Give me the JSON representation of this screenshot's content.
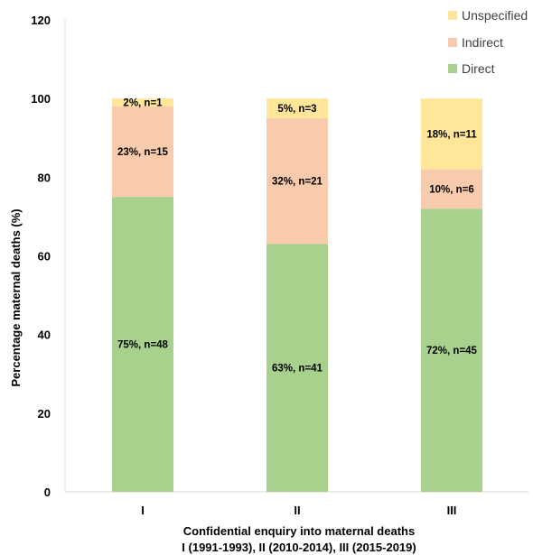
{
  "chart_data": {
    "type": "bar",
    "stacked": true,
    "categories": [
      "I",
      "II",
      "III"
    ],
    "series": [
      {
        "name": "Direct",
        "color": "#a9d18e",
        "values": [
          75,
          63,
          72
        ],
        "labels": [
          "75%, n=48",
          "63%, n=41",
          "72%, n=45"
        ]
      },
      {
        "name": "Indirect",
        "color": "#f8cbad",
        "values": [
          23,
          32,
          10
        ],
        "labels": [
          "23%, n=15",
          "32%, n=21",
          "10%, n=6"
        ]
      },
      {
        "name": "Unspecified",
        "color": "#ffe699",
        "values": [
          2,
          5,
          18
        ],
        "labels": [
          "2%, n=1",
          "5%, n=3",
          "18%, n=11"
        ]
      }
    ],
    "ylabel": "Percentage maternal deaths (%)",
    "xlabel_line1": "Confidential enquiry into maternal deaths",
    "xlabel_line2": "I (1991-1993), II (2010-2014), III (2015-2019)",
    "ylim": [
      0,
      120
    ],
    "yticks": [
      "0",
      "20",
      "40",
      "60",
      "80",
      "100",
      "120"
    ],
    "grid": false,
    "legend_position": "top-right",
    "legend_order": [
      "Unspecified",
      "Indirect",
      "Direct"
    ]
  }
}
